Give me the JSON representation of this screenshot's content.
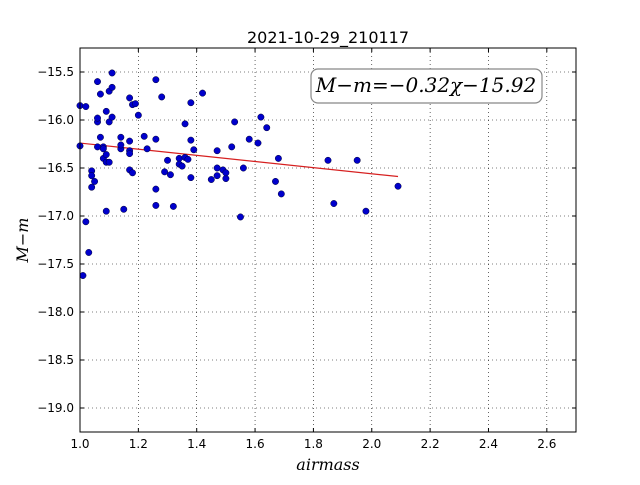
{
  "chart_data": {
    "type": "scatter",
    "title": "2021-10-29_210117",
    "xlabel": "airmass",
    "ylabel": "M−m",
    "xlim": [
      1.0,
      2.7
    ],
    "ylim": [
      -19.25,
      -15.25
    ],
    "y_inverted": true,
    "grid": true,
    "x_ticks": [
      "1.0",
      "1.2",
      "1.4",
      "1.6",
      "1.8",
      "2.0",
      "2.2",
      "2.4",
      "2.6"
    ],
    "y_ticks": [
      "−15.5",
      "−16.0",
      "−16.5",
      "−17.0",
      "−17.5",
      "−18.0",
      "−18.5",
      "−19.0"
    ],
    "annotation": "M−m=−0.32χ−15.92",
    "fit": {
      "slope": -0.32,
      "intercept": -15.92,
      "x_range": [
        1.0,
        2.09
      ],
      "color": "#d62020"
    },
    "point_color": "#0000cc",
    "points": [
      [
        1.0,
        -16.27
      ],
      [
        1.0,
        -15.85
      ],
      [
        1.02,
        -15.86
      ],
      [
        1.02,
        -17.06
      ],
      [
        1.03,
        -17.38
      ],
      [
        1.01,
        -17.62
      ],
      [
        1.04,
        -16.53
      ],
      [
        1.04,
        -16.58
      ],
      [
        1.04,
        -16.7
      ],
      [
        1.05,
        -16.64
      ],
      [
        1.06,
        -16.28
      ],
      [
        1.06,
        -16.02
      ],
      [
        1.06,
        -15.98
      ],
      [
        1.06,
        -15.6
      ],
      [
        1.07,
        -15.73
      ],
      [
        1.07,
        -16.18
      ],
      [
        1.08,
        -16.28
      ],
      [
        1.08,
        -16.3
      ],
      [
        1.08,
        -16.4
      ],
      [
        1.09,
        -16.36
      ],
      [
        1.09,
        -16.44
      ],
      [
        1.09,
        -15.91
      ],
      [
        1.09,
        -16.95
      ],
      [
        1.1,
        -15.7
      ],
      [
        1.1,
        -16.02
      ],
      [
        1.1,
        -16.44
      ],
      [
        1.11,
        -15.97
      ],
      [
        1.11,
        -15.66
      ],
      [
        1.11,
        -15.51
      ],
      [
        1.14,
        -16.18
      ],
      [
        1.14,
        -16.3
      ],
      [
        1.14,
        -16.26
      ],
      [
        1.15,
        -16.93
      ],
      [
        1.17,
        -16.22
      ],
      [
        1.17,
        -16.32
      ],
      [
        1.17,
        -16.35
      ],
      [
        1.17,
        -16.52
      ],
      [
        1.18,
        -16.55
      ],
      [
        1.17,
        -15.77
      ],
      [
        1.18,
        -15.84
      ],
      [
        1.19,
        -15.83
      ],
      [
        1.2,
        -15.95
      ],
      [
        1.22,
        -16.17
      ],
      [
        1.23,
        -16.3
      ],
      [
        1.26,
        -15.58
      ],
      [
        1.26,
        -16.2
      ],
      [
        1.26,
        -16.72
      ],
      [
        1.26,
        -16.89
      ],
      [
        1.28,
        -15.76
      ],
      [
        1.29,
        -16.54
      ],
      [
        1.3,
        -16.42
      ],
      [
        1.31,
        -16.57
      ],
      [
        1.32,
        -16.9
      ],
      [
        1.34,
        -16.4
      ],
      [
        1.34,
        -16.46
      ],
      [
        1.35,
        -16.48
      ],
      [
        1.36,
        -16.04
      ],
      [
        1.36,
        -16.39
      ],
      [
        1.37,
        -16.41
      ],
      [
        1.38,
        -16.21
      ],
      [
        1.38,
        -15.82
      ],
      [
        1.38,
        -16.6
      ],
      [
        1.39,
        -16.31
      ],
      [
        1.42,
        -15.72
      ],
      [
        1.45,
        -16.62
      ],
      [
        1.47,
        -16.58
      ],
      [
        1.47,
        -16.5
      ],
      [
        1.47,
        -16.32
      ],
      [
        1.49,
        -16.52
      ],
      [
        1.5,
        -16.61
      ],
      [
        1.5,
        -16.55
      ],
      [
        1.52,
        -16.28
      ],
      [
        1.53,
        -16.02
      ],
      [
        1.55,
        -17.01
      ],
      [
        1.56,
        -16.5
      ],
      [
        1.58,
        -16.2
      ],
      [
        1.61,
        -16.24
      ],
      [
        1.62,
        -15.97
      ],
      [
        1.64,
        -16.08
      ],
      [
        1.67,
        -16.64
      ],
      [
        1.68,
        -16.4
      ],
      [
        1.69,
        -16.77
      ],
      [
        1.85,
        -16.42
      ],
      [
        1.87,
        -16.87
      ],
      [
        1.95,
        -16.42
      ],
      [
        1.98,
        -16.95
      ],
      [
        2.09,
        -16.69
      ]
    ]
  }
}
